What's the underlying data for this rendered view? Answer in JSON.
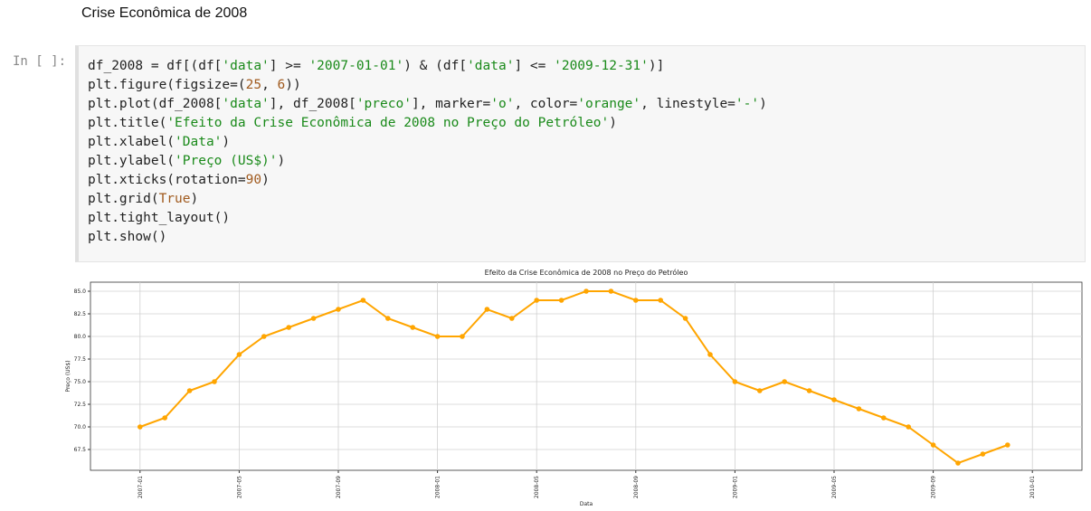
{
  "markdown": {
    "heading": "Crise Econômica de 2008"
  },
  "cell": {
    "prompt": "In [ ]:",
    "code": [
      "df_2008 = df[(df['data'] >= '2007-01-01') & (df['data'] <= '2009-12-31')]",
      "plt.figure(figsize=(25, 6))",
      "plt.plot(df_2008['data'], df_2008['preco'], marker='o', color='orange', linestyle='-')",
      "plt.title('Efeito da Crise Econômica de 2008 no Preço do Petróleo')",
      "plt.xlabel('Data')",
      "plt.ylabel('Preço (US$)')",
      "plt.xticks(rotation=90)",
      "plt.grid(True)",
      "plt.tight_layout()",
      "plt.show()"
    ]
  },
  "chart_data": {
    "type": "line",
    "title": "Efeito da Crise Econômica de 2008 no Preço do Petróleo",
    "xlabel": "Data",
    "ylabel": "Preço (US$)",
    "x": [
      "2007-01",
      "2007-02",
      "2007-03",
      "2007-04",
      "2007-05",
      "2007-06",
      "2007-07",
      "2007-08",
      "2007-09",
      "2007-10",
      "2007-11",
      "2007-12",
      "2008-01",
      "2008-02",
      "2008-03",
      "2008-04",
      "2008-05",
      "2008-06",
      "2008-07",
      "2008-08",
      "2008-09",
      "2008-10",
      "2008-11",
      "2008-12",
      "2009-01",
      "2009-02",
      "2009-03",
      "2009-04",
      "2009-05",
      "2009-06",
      "2009-07",
      "2009-08",
      "2009-09",
      "2009-10",
      "2009-11",
      "2009-12"
    ],
    "values": [
      70,
      71,
      74,
      75,
      78,
      80,
      81,
      82,
      83,
      84,
      82,
      81,
      80,
      80,
      83,
      82,
      84,
      84,
      85,
      85,
      84,
      84,
      82,
      78,
      75,
      74,
      75,
      74,
      73,
      72,
      71,
      70,
      68,
      66,
      67,
      68
    ],
    "color": "orange",
    "xlim": [
      "2006-11",
      "2010-03"
    ],
    "xticks": [
      "2007-01",
      "2007-05",
      "2007-09",
      "2008-01",
      "2008-05",
      "2008-09",
      "2009-01",
      "2009-05",
      "2009-09",
      "2010-01"
    ],
    "ylim": [
      65.2,
      86
    ],
    "yticks": [
      {
        "value": 67.5,
        "label": "67.5"
      },
      {
        "value": 70,
        "label": "70.0"
      },
      {
        "value": 72.5,
        "label": "72.5"
      },
      {
        "value": 75,
        "label": "75.0"
      },
      {
        "value": 77.5,
        "label": "77.5"
      },
      {
        "value": 80,
        "label": "80.0"
      },
      {
        "value": 82.5,
        "label": "82.5"
      },
      {
        "value": 85,
        "label": "85.0"
      }
    ],
    "grid": true
  }
}
